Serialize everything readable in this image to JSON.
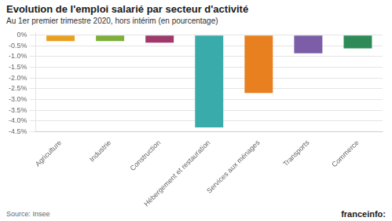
{
  "chart_data": {
    "type": "bar",
    "title": "Evolution de l'emploi salarié par secteur d'activité",
    "subtitle": "Au 1er premier trimestre 2020, hors intérim (en pourcentage)",
    "annotations": [
      "Source: Insee",
      "franceinfo:"
    ],
    "categories": [
      "Agriculture",
      "Industrie",
      "Construction",
      "Hébergement et restauration",
      "Services aux ménages",
      "Transports",
      "Commerce"
    ],
    "values": [
      -0.28,
      -0.28,
      -0.35,
      -4.3,
      -2.7,
      -0.85,
      -0.62
    ],
    "colors": [
      "#E8A020",
      "#7DAF3A",
      "#9E3A6B",
      "#3AABAB",
      "#E88020",
      "#7B5EA7",
      "#2E8B57"
    ],
    "ylim": [
      -4.5,
      0.12
    ],
    "yticks": [
      {
        "value": 0,
        "label": "0%"
      },
      {
        "value": -0.5,
        "label": "-0.5%"
      },
      {
        "value": -1.0,
        "label": "-1.0%"
      },
      {
        "value": -1.5,
        "label": "-1.5%"
      },
      {
        "value": -2.0,
        "label": "-2.0%"
      },
      {
        "value": -2.5,
        "label": "-2.5%"
      },
      {
        "value": -3.0,
        "label": "-3.0%"
      },
      {
        "value": -3.5,
        "label": "-3.5%"
      },
      {
        "value": -4.0,
        "label": "-4.0%"
      },
      {
        "value": -4.5,
        "label": "-4.5%"
      }
    ],
    "grid": true
  }
}
